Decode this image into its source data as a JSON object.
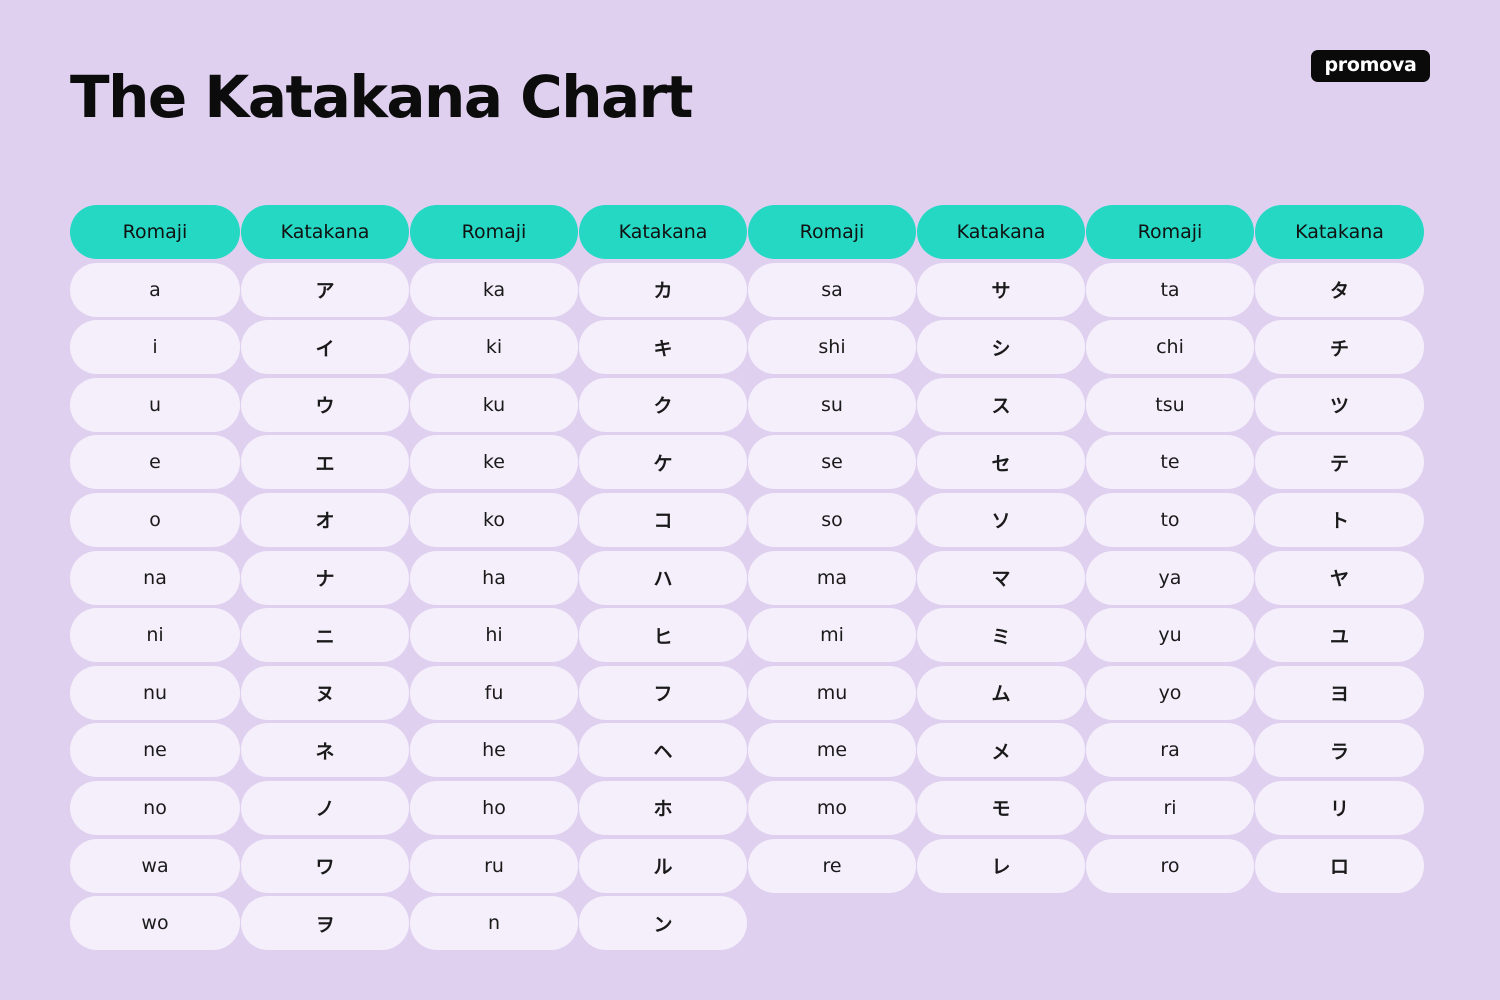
{
  "title": "The Katakana Chart",
  "logo": "promova",
  "headers": [
    "Romaji",
    "Katakana",
    "Romaji",
    "Katakana",
    "Romaji",
    "Katakana",
    "Romaji",
    "Katakana"
  ],
  "rows": [
    [
      "a",
      "ア",
      "ka",
      "カ",
      "sa",
      "サ",
      "ta",
      "タ"
    ],
    [
      "i",
      "イ",
      "ki",
      "キ",
      "shi",
      "シ",
      "chi",
      "チ"
    ],
    [
      "u",
      "ウ",
      "ku",
      "ク",
      "su",
      "ス",
      "tsu",
      "ツ"
    ],
    [
      "e",
      "エ",
      "ke",
      "ケ",
      "se",
      "セ",
      "te",
      "テ"
    ],
    [
      "o",
      "オ",
      "ko",
      "コ",
      "so",
      "ソ",
      "to",
      "ト"
    ],
    [
      "na",
      "ナ",
      "ha",
      "ハ",
      "ma",
      "マ",
      "ya",
      "ヤ"
    ],
    [
      "ni",
      "ニ",
      "hi",
      "ヒ",
      "mi",
      "ミ",
      "yu",
      "ユ"
    ],
    [
      "nu",
      "ヌ",
      "fu",
      "フ",
      "mu",
      "ム",
      "yo",
      "ヨ"
    ],
    [
      "ne",
      "ネ",
      "he",
      "ヘ",
      "me",
      "メ",
      "ra",
      "ラ"
    ],
    [
      "no",
      "ノ",
      "ho",
      "ホ",
      "mo",
      "モ",
      "ri",
      "リ"
    ],
    [
      "wa",
      "ワ",
      "ru",
      "ル",
      "re",
      "レ",
      "ro",
      "ロ"
    ],
    [
      "wo",
      "ヲ",
      "n",
      "ン"
    ]
  ],
  "colors": {
    "background": "#dfd0f0",
    "header": "#24d8c4",
    "cell": "#f4effb",
    "logo": "#0a0a0a"
  }
}
